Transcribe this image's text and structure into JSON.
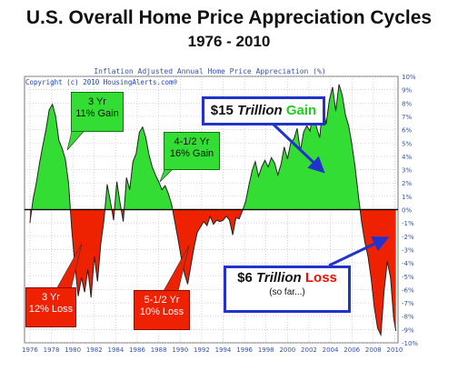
{
  "header": {
    "title": "U.S. Overall Home Price Appreciation Cycles",
    "subtitle": "1976 - 2010"
  },
  "plot": {
    "title": "Inflation Adjusted Annual Home Price Appreciation (%)",
    "copyright": "Copyright (c) 2010 HousingAlerts.com®"
  },
  "callouts": {
    "gain1": {
      "line1": "3 Yr",
      "line2": "11% Gain"
    },
    "gain2": {
      "line1": "4-1/2 Yr",
      "line2": "16% Gain"
    },
    "loss1": {
      "line1": "3 Yr",
      "line2": "12% Loss"
    },
    "loss2": {
      "line1": "5-1/2 Yr",
      "line2": "10% Loss"
    },
    "big_gain": {
      "prefix": "$15 ",
      "italic": "Trillion",
      "word": "Gain"
    },
    "big_loss": {
      "prefix": "$6 ",
      "italic": "Trillion",
      "word": "Loss",
      "note": "(so far...)"
    }
  },
  "colors": {
    "gain": "#33dd33",
    "loss": "#ee2200",
    "grid": "#bbbbbb",
    "axis_text": "#3355aa",
    "arrow": "#2233cc"
  },
  "chart_data": {
    "type": "area",
    "title": "Inflation Adjusted Annual Home Price Appreciation (%)",
    "xlim": [
      1975.5,
      2010.3
    ],
    "ylim": [
      -10,
      10
    ],
    "grid": true,
    "x_ticks": [
      "1976",
      "1978",
      "1980",
      "1982",
      "1984",
      "1986",
      "1988",
      "1990",
      "1992",
      "1994",
      "1996",
      "1998",
      "2000",
      "2002",
      "2004",
      "2006",
      "2008",
      "2010"
    ],
    "y_ticks": [
      "10%",
      "9%",
      "8%",
      "7%",
      "6%",
      "5%",
      "4%",
      "3%",
      "2%",
      "1%",
      "0%",
      "-1%",
      "-2%",
      "-3%",
      "-4%",
      "-5%",
      "-6%",
      "-7%",
      "-8%",
      "-9%",
      "-10%"
    ],
    "series": [
      {
        "x": [
          1976.0,
          1976.3,
          1976.6,
          1976.9,
          1977.2,
          1977.5,
          1977.8,
          1978.1,
          1978.4,
          1978.7,
          1979.0,
          1979.3,
          1979.6,
          1979.9,
          1980.2,
          1980.5,
          1980.8,
          1981.1,
          1981.4,
          1981.7,
          1982.0,
          1982.3,
          1982.6,
          1982.9,
          1983.2,
          1983.5,
          1983.8,
          1984.1,
          1984.4,
          1984.7,
          1985.0,
          1985.3,
          1985.6,
          1985.9,
          1986.2,
          1986.5,
          1986.8,
          1987.1,
          1987.4,
          1987.7,
          1988.0,
          1988.3,
          1988.6,
          1988.9,
          1989.2,
          1989.5,
          1989.8,
          1990.1,
          1990.4,
          1990.7,
          1991.0,
          1991.3,
          1991.6,
          1991.9,
          1992.2,
          1992.5,
          1992.8,
          1993.1,
          1993.4,
          1993.7,
          1994.0,
          1994.3,
          1994.6,
          1994.9,
          1995.2,
          1995.5,
          1995.8,
          1996.1,
          1996.4,
          1996.7,
          1997.0,
          1997.3,
          1997.6,
          1997.9,
          1998.2,
          1998.5,
          1998.8,
          1999.1,
          1999.4,
          1999.7,
          2000.0,
          2000.3,
          2000.6,
          2000.9,
          2001.2,
          2001.5,
          2001.8,
          2002.1,
          2002.4,
          2002.7,
          2003.0,
          2003.3,
          2003.6,
          2003.9,
          2004.2,
          2004.5,
          2004.8,
          2005.1,
          2005.4,
          2005.7,
          2006.0,
          2006.3,
          2006.6,
          2006.9,
          2007.2,
          2007.5,
          2007.8,
          2008.1,
          2008.4,
          2008.7,
          2009.0,
          2009.3,
          2009.6,
          2009.9,
          2010.1
        ],
        "values": [
          -1.0,
          0.8,
          2.0,
          3.5,
          4.8,
          6.0,
          7.5,
          7.9,
          7.0,
          5.2,
          4.6,
          3.8,
          2.0,
          -1.5,
          -4.2,
          -6.5,
          -5.1,
          -6.2,
          -4.5,
          -6.6,
          -3.5,
          -5.4,
          -2.6,
          -0.8,
          1.9,
          0.6,
          -0.8,
          2.1,
          0.5,
          -0.9,
          2.4,
          1.5,
          3.6,
          4.2,
          5.8,
          6.2,
          5.4,
          4.1,
          3.2,
          2.6,
          2.1,
          1.5,
          1.8,
          1.2,
          0.4,
          -0.9,
          -2.2,
          -3.6,
          -4.8,
          -5.6,
          -4.2,
          -2.8,
          -1.7,
          -1.3,
          -0.9,
          -1.2,
          -0.5,
          -1.1,
          -0.8,
          -0.9,
          -0.8,
          -0.5,
          -0.8,
          -1.9,
          -0.6,
          -0.7,
          -0.1,
          0.6,
          1.8,
          2.9,
          3.6,
          2.5,
          3.2,
          3.7,
          3.2,
          3.9,
          3.5,
          2.6,
          3.4,
          4.7,
          3.8,
          5.0,
          5.3,
          6.1,
          4.4,
          5.8,
          6.3,
          5.9,
          7.2,
          6.2,
          5.4,
          7.8,
          6.4,
          8.2,
          9.2,
          7.4,
          9.4,
          8.6,
          7.1,
          6.3,
          4.9,
          3.2,
          1.1,
          -0.9,
          -2.4,
          -3.5,
          -5.2,
          -7.4,
          -8.9,
          -9.4,
          -6.1,
          -3.9,
          -5.1,
          -8.2,
          -9.1
        ]
      }
    ]
  }
}
